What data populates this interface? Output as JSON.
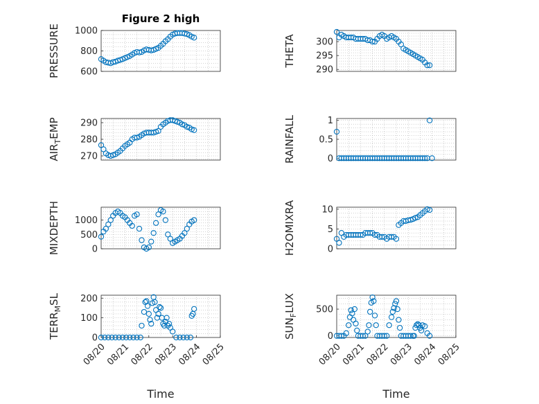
{
  "chart_data": [
    {
      "type": "scatter",
      "title": "Figure 2 high",
      "ylabel": "PRESSURE",
      "ylabel_sub": null,
      "xlabel": "",
      "ylim": [
        600,
        1000
      ],
      "yticks": [
        600,
        800,
        1000
      ],
      "xlim": [
        0,
        5
      ],
      "xtick_labels": [],
      "x": [
        0.0,
        0.1,
        0.2,
        0.3,
        0.4,
        0.5,
        0.6,
        0.7,
        0.8,
        0.9,
        1.0,
        1.1,
        1.2,
        1.3,
        1.4,
        1.5,
        1.6,
        1.7,
        1.8,
        1.9,
        2.0,
        2.1,
        2.2,
        2.3,
        2.4,
        2.5,
        2.6,
        2.7,
        2.8,
        2.9,
        3.0,
        3.1,
        3.2,
        3.3,
        3.4,
        3.5,
        3.6,
        3.7,
        3.8,
        3.9
      ],
      "y": [
        720,
        705,
        690,
        685,
        680,
        690,
        695,
        705,
        712,
        720,
        730,
        740,
        750,
        765,
        780,
        790,
        785,
        790,
        805,
        815,
        810,
        805,
        810,
        820,
        830,
        850,
        870,
        895,
        915,
        940,
        960,
        970,
        975,
        975,
        975,
        970,
        965,
        955,
        940,
        930
      ]
    },
    {
      "type": "scatter",
      "title": "",
      "ylabel": "THETA",
      "ylabel_sub": null,
      "xlabel": "",
      "ylim": [
        289.3,
        304
      ],
      "yticks": [
        290,
        295,
        300
      ],
      "xlim": [
        0,
        5
      ],
      "xtick_labels": [],
      "x": [
        0.0,
        0.1,
        0.2,
        0.3,
        0.4,
        0.5,
        0.6,
        0.7,
        0.8,
        0.9,
        1.0,
        1.1,
        1.2,
        1.3,
        1.4,
        1.5,
        1.6,
        1.7,
        1.8,
        1.9,
        2.0,
        2.1,
        2.2,
        2.3,
        2.4,
        2.5,
        2.6,
        2.7,
        2.8,
        2.9,
        3.0,
        3.1,
        3.2,
        3.3,
        3.4,
        3.5,
        3.6,
        3.7,
        3.8,
        3.9
      ],
      "y": [
        303.5,
        301.5,
        302.5,
        302,
        301.5,
        301.5,
        301.5,
        301.5,
        301,
        301,
        301,
        301,
        301,
        300.5,
        300.5,
        300,
        300,
        301,
        302,
        302.5,
        302,
        301,
        301.5,
        302,
        301.5,
        301,
        300,
        299,
        297.5,
        297,
        296.5,
        296,
        295.5,
        295,
        294.5,
        294,
        293.5,
        292.5,
        291.5,
        291.5
      ]
    },
    {
      "type": "scatter",
      "title": "",
      "ylabel": "AIR",
      "ylabel_sub": "T",
      "ylabel_rest": "EMP",
      "xlabel": "",
      "ylim": [
        267.5,
        292.5
      ],
      "yticks": [
        270,
        280,
        290
      ],
      "xlim": [
        0,
        5
      ],
      "xtick_labels": [],
      "x": [
        0.0,
        0.1,
        0.2,
        0.3,
        0.4,
        0.5,
        0.6,
        0.7,
        0.8,
        0.9,
        1.0,
        1.1,
        1.2,
        1.3,
        1.4,
        1.5,
        1.6,
        1.7,
        1.8,
        1.9,
        2.0,
        2.1,
        2.2,
        2.3,
        2.4,
        2.5,
        2.6,
        2.7,
        2.8,
        2.9,
        3.0,
        3.1,
        3.2,
        3.3,
        3.4,
        3.5,
        3.6,
        3.7,
        3.8,
        3.9
      ],
      "y": [
        276.5,
        274,
        271.5,
        270.5,
        270,
        270.5,
        271,
        272,
        273,
        274.5,
        276,
        277,
        278,
        280,
        281,
        281,
        281.5,
        282.5,
        283.5,
        284,
        284,
        284,
        284,
        284.5,
        285,
        287.5,
        289,
        290,
        291,
        291.5,
        291.5,
        291,
        290.5,
        290,
        289,
        288.5,
        287.5,
        287,
        286,
        285.5
      ]
    },
    {
      "type": "scatter",
      "title": "",
      "ylabel": "RAINFALL",
      "ylabel_sub": null,
      "xlabel": "",
      "ylim": [
        -0.05,
        1.05
      ],
      "yticks": [
        0,
        0.5,
        1
      ],
      "xlim": [
        0,
        5
      ],
      "xtick_labels": [],
      "x": [
        0.0,
        0.1,
        0.2,
        0.3,
        0.4,
        0.5,
        0.6,
        0.7,
        0.8,
        0.9,
        1.0,
        1.1,
        1.2,
        1.3,
        1.4,
        1.5,
        1.6,
        1.7,
        1.8,
        1.9,
        2.0,
        2.1,
        2.2,
        2.3,
        2.4,
        2.5,
        2.6,
        2.7,
        2.8,
        2.9,
        3.0,
        3.1,
        3.2,
        3.3,
        3.4,
        3.5,
        3.6,
        3.7,
        3.8,
        3.9,
        4.0
      ],
      "y": [
        0.7,
        0,
        0,
        0,
        0,
        0,
        0,
        0,
        0,
        0,
        0,
        0,
        0,
        0,
        0,
        0,
        0,
        0,
        0,
        0,
        0,
        0,
        0,
        0,
        0,
        0,
        0,
        0,
        0,
        0,
        0,
        0,
        0,
        0,
        0,
        0,
        0,
        0,
        0,
        1.0,
        0
      ]
    },
    {
      "type": "scatter",
      "title": "",
      "ylabel": "MIXDEPTH",
      "ylabel_sub": null,
      "xlabel": "",
      "ylim": [
        0,
        1450
      ],
      "yticks": [
        0,
        500,
        1000
      ],
      "xlim": [
        0,
        5
      ],
      "xtick_labels": [],
      "x": [
        0.0,
        0.1,
        0.2,
        0.3,
        0.4,
        0.5,
        0.6,
        0.7,
        0.8,
        0.9,
        1.0,
        1.1,
        1.2,
        1.3,
        1.4,
        1.5,
        1.6,
        1.7,
        1.8,
        1.9,
        2.0,
        2.1,
        2.2,
        2.3,
        2.4,
        2.5,
        2.6,
        2.7,
        2.8,
        2.9,
        3.0,
        3.1,
        3.2,
        3.3,
        3.4,
        3.5,
        3.6,
        3.7,
        3.8,
        3.9
      ],
      "y": [
        420,
        600,
        700,
        850,
        1000,
        1150,
        1250,
        1300,
        1250,
        1150,
        1100,
        1000,
        900,
        800,
        1150,
        1200,
        700,
        300,
        50,
        0,
        50,
        250,
        550,
        900,
        1200,
        1350,
        1300,
        1000,
        500,
        350,
        200,
        250,
        300,
        350,
        450,
        550,
        700,
        850,
        950,
        1000
      ]
    },
    {
      "type": "scatter",
      "title": "",
      "ylabel": "H2OMIXRA",
      "ylabel_sub": null,
      "xlabel": "",
      "ylim": [
        0,
        10.5
      ],
      "yticks": [
        0,
        5,
        10
      ],
      "xlim": [
        0,
        5
      ],
      "xtick_labels": [],
      "x": [
        0.0,
        0.1,
        0.2,
        0.3,
        0.4,
        0.5,
        0.6,
        0.7,
        0.8,
        0.9,
        1.0,
        1.1,
        1.2,
        1.3,
        1.4,
        1.5,
        1.6,
        1.7,
        1.8,
        1.9,
        2.0,
        2.1,
        2.2,
        2.3,
        2.4,
        2.5,
        2.6,
        2.7,
        2.8,
        2.9,
        3.0,
        3.1,
        3.2,
        3.3,
        3.4,
        3.5,
        3.6,
        3.7,
        3.8,
        3.9
      ],
      "y": [
        2.5,
        1.5,
        4.0,
        3.0,
        3.5,
        3.5,
        3.5,
        3.5,
        3.5,
        3.5,
        3.5,
        3.5,
        4.0,
        4.0,
        4.0,
        4.0,
        3.5,
        3.5,
        3.0,
        3.0,
        3.0,
        2.5,
        3.0,
        3.0,
        3.0,
        2.5,
        6.0,
        6.5,
        7.0,
        7.0,
        7.2,
        7.3,
        7.5,
        7.8,
        8.0,
        8.5,
        9.0,
        9.5,
        10.0,
        9.8
      ]
    },
    {
      "type": "scatter",
      "title": "",
      "ylabel": "TERR",
      "ylabel_sub": "M",
      "ylabel_rest": "SL",
      "xlabel": "Time",
      "ylim": [
        0,
        215
      ],
      "yticks": [
        0,
        100,
        200
      ],
      "xlim": [
        0,
        5
      ],
      "xtick_labels": [
        "08/20",
        "08/21",
        "08/22",
        "08/23",
        "08/24",
        "08/25"
      ],
      "x": [
        0.0,
        0.15,
        0.3,
        0.45,
        0.6,
        0.75,
        0.9,
        1.05,
        1.2,
        1.35,
        1.5,
        1.65,
        1.7,
        1.8,
        1.85,
        1.9,
        1.95,
        2.0,
        2.05,
        2.1,
        2.15,
        2.2,
        2.25,
        2.3,
        2.35,
        2.4,
        2.45,
        2.5,
        2.55,
        2.6,
        2.65,
        2.7,
        2.75,
        2.8,
        2.85,
        2.9,
        3.0,
        3.15,
        3.3,
        3.45,
        3.6,
        3.75,
        3.8,
        3.85,
        3.9
      ],
      "y": [
        0,
        0,
        0,
        0,
        0,
        0,
        0,
        0,
        0,
        0,
        0,
        0,
        60,
        130,
        180,
        185,
        160,
        120,
        90,
        70,
        175,
        205,
        180,
        140,
        100,
        120,
        155,
        150,
        100,
        70,
        60,
        80,
        100,
        60,
        70,
        50,
        30,
        0,
        0,
        0,
        0,
        0,
        110,
        120,
        145
      ]
    },
    {
      "type": "scatter",
      "title": "",
      "ylabel": "SUN",
      "ylabel_sub": "F",
      "ylabel_rest": "LUX",
      "xlabel": "Time",
      "ylim": [
        -30,
        760
      ],
      "yticks": [
        0,
        500
      ],
      "xlim": [
        0,
        5
      ],
      "xtick_labels": [
        "08/20",
        "08/21",
        "08/22",
        "08/23",
        "08/24",
        "08/25"
      ],
      "x": [
        0.0,
        0.1,
        0.2,
        0.3,
        0.4,
        0.5,
        0.55,
        0.6,
        0.65,
        0.7,
        0.75,
        0.8,
        0.85,
        0.9,
        1.0,
        1.1,
        1.2,
        1.3,
        1.35,
        1.4,
        1.45,
        1.5,
        1.55,
        1.6,
        1.65,
        1.7,
        1.8,
        1.9,
        2.0,
        2.1,
        2.2,
        2.3,
        2.35,
        2.4,
        2.45,
        2.5,
        2.55,
        2.6,
        2.65,
        2.7,
        2.8,
        2.9,
        3.0,
        3.1,
        3.2,
        3.25,
        3.3,
        3.35,
        3.4,
        3.45,
        3.5,
        3.55,
        3.6,
        3.7,
        3.8,
        3.9
      ],
      "y": [
        0,
        0,
        0,
        0,
        50,
        200,
        350,
        480,
        420,
        300,
        500,
        230,
        100,
        0,
        0,
        0,
        0,
        80,
        200,
        450,
        620,
        720,
        650,
        380,
        200,
        0,
        0,
        0,
        0,
        0,
        200,
        350,
        450,
        520,
        600,
        650,
        500,
        300,
        150,
        0,
        0,
        0,
        0,
        0,
        0,
        0,
        150,
        200,
        220,
        200,
        150,
        100,
        200,
        180,
        50,
        0
      ]
    }
  ]
}
